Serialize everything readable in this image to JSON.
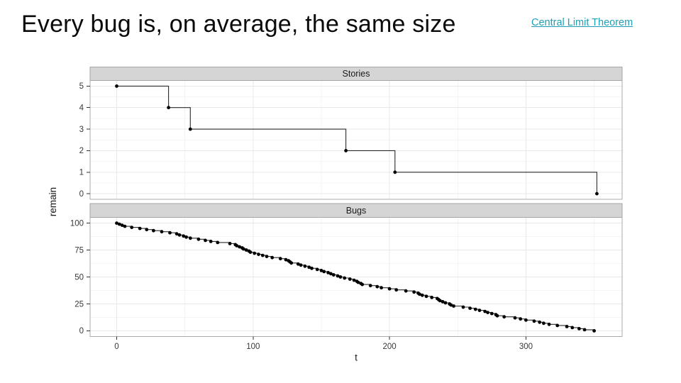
{
  "slide": {
    "title": "Every bug is, on average, the same size",
    "link_text": "Central Limit Theorem",
    "link_color": "#1f9fb4"
  },
  "chart_data": {
    "type": "scatter",
    "subtype": "faceted step + points (burndown)",
    "xlabel": "t",
    "ylabel": "remain",
    "xticks": [
      0,
      100,
      200,
      300
    ],
    "x_minor": [
      50,
      150,
      250,
      350
    ],
    "x_domain": [
      -19.5,
      370.5
    ],
    "grid": "major+minor",
    "legend": "none",
    "facets": [
      {
        "label": "Stories",
        "yticks": [
          0,
          1,
          2,
          3,
          4,
          5
        ],
        "y_minor": [
          0.5,
          1.5,
          2.5,
          3.5,
          4.5
        ],
        "y_domain": [
          -0.26,
          5.26
        ],
        "points": [
          [
            0,
            5
          ],
          [
            38,
            4
          ],
          [
            54,
            3
          ],
          [
            168,
            2
          ],
          [
            204,
            1
          ],
          [
            352,
            0
          ]
        ]
      },
      {
        "label": "Bugs",
        "yticks": [
          0,
          25,
          50,
          75,
          100
        ],
        "y_minor": [
          12.5,
          37.5,
          62.5,
          87.5
        ],
        "y_domain": [
          -5.3,
          105.3
        ],
        "points": [
          [
            0,
            100
          ],
          [
            2,
            99
          ],
          [
            4,
            98
          ],
          [
            6,
            97
          ],
          [
            11,
            96
          ],
          [
            17,
            95
          ],
          [
            22,
            94
          ],
          [
            27,
            93
          ],
          [
            33,
            92
          ],
          [
            39,
            91
          ],
          [
            44,
            90
          ],
          [
            46,
            89
          ],
          [
            49,
            88
          ],
          [
            51,
            87
          ],
          [
            54,
            86
          ],
          [
            60,
            85
          ],
          [
            65,
            84
          ],
          [
            69,
            83
          ],
          [
            74,
            82
          ],
          [
            83,
            81
          ],
          [
            87,
            80
          ],
          [
            88,
            79
          ],
          [
            90,
            78
          ],
          [
            92,
            77
          ],
          [
            93,
            76
          ],
          [
            95,
            75
          ],
          [
            97,
            74
          ],
          [
            98,
            73
          ],
          [
            101,
            72
          ],
          [
            104,
            71
          ],
          [
            107,
            70
          ],
          [
            110,
            69
          ],
          [
            114,
            68
          ],
          [
            120,
            67
          ],
          [
            124,
            66
          ],
          [
            126,
            65
          ],
          [
            127,
            64
          ],
          [
            128,
            63
          ],
          [
            133,
            62
          ],
          [
            135,
            61
          ],
          [
            138,
            60
          ],
          [
            141,
            59
          ],
          [
            143,
            58
          ],
          [
            147,
            57
          ],
          [
            150,
            56
          ],
          [
            152,
            55
          ],
          [
            155,
            54
          ],
          [
            157,
            53
          ],
          [
            159,
            52
          ],
          [
            162,
            51
          ],
          [
            164,
            50
          ],
          [
            167,
            49
          ],
          [
            171,
            48
          ],
          [
            174,
            47
          ],
          [
            176,
            46
          ],
          [
            177,
            45
          ],
          [
            179,
            44
          ],
          [
            180,
            43
          ],
          [
            186,
            42
          ],
          [
            191,
            41
          ],
          [
            194,
            40
          ],
          [
            200,
            39
          ],
          [
            205,
            38
          ],
          [
            212,
            37
          ],
          [
            218,
            36
          ],
          [
            221,
            35
          ],
          [
            222,
            34
          ],
          [
            224,
            33
          ],
          [
            227,
            32
          ],
          [
            231,
            31
          ],
          [
            235,
            30
          ],
          [
            236,
            29
          ],
          [
            237,
            28
          ],
          [
            239,
            27
          ],
          [
            241,
            26
          ],
          [
            244,
            25
          ],
          [
            245,
            24
          ],
          [
            247,
            23
          ],
          [
            254,
            22
          ],
          [
            259,
            21
          ],
          [
            263,
            20
          ],
          [
            266,
            19
          ],
          [
            270,
            18
          ],
          [
            272,
            17
          ],
          [
            275,
            16
          ],
          [
            278,
            15
          ],
          [
            279,
            14
          ],
          [
            284,
            13
          ],
          [
            292,
            12
          ],
          [
            296,
            11
          ],
          [
            300,
            10
          ],
          [
            306,
            9
          ],
          [
            310,
            8
          ],
          [
            313,
            7
          ],
          [
            317,
            6
          ],
          [
            323,
            5
          ],
          [
            330,
            4
          ],
          [
            334,
            3
          ],
          [
            339,
            2
          ],
          [
            343,
            1
          ],
          [
            350,
            0
          ]
        ]
      }
    ],
    "colors": {
      "point": "#000000",
      "line": "#2b2b2b",
      "strip_bg": "#d5d5d5",
      "strip_border": "#a6a6a6",
      "panel_border": "#ababab",
      "grid_major": "#e8e8e8",
      "grid_minor": "#f4f4f4",
      "axis_text": "#383838",
      "strip_text": "#1a1a1a"
    }
  }
}
